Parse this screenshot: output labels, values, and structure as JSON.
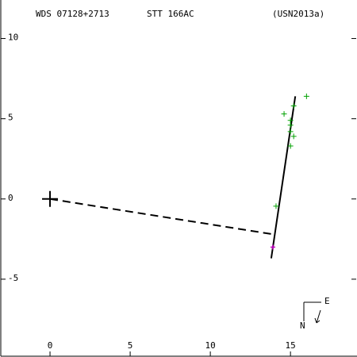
{
  "chart_data": {
    "type": "scatter",
    "title_left": "WDS 07128+2713",
    "title_center": "STT 166AC",
    "title_right": "(USN2013a)",
    "xlim": [
      -3.07,
      19.1
    ],
    "ylim": [
      -9.8,
      12.4
    ],
    "xticks": [
      0,
      5,
      10,
      15
    ],
    "yticks": [
      10,
      5,
      0,
      -5
    ],
    "series": [
      {
        "color": "#00a000",
        "x": [
          16.0,
          15.2,
          14.6,
          15.0,
          15.0,
          15.0,
          15.2,
          15.0,
          14.1
        ],
        "y": [
          6.4,
          5.8,
          5.3,
          4.9,
          4.6,
          4.2,
          3.9,
          3.3,
          -0.45
        ]
      }
    ],
    "primary": {
      "x": 0,
      "y": 0,
      "color": "#000000"
    },
    "predicted": {
      "x": 13.9,
      "y": -3.0,
      "color": "#c000c0"
    },
    "orbit_line": {
      "x": [
        13.8,
        15.3
      ],
      "y": [
        -3.7,
        6.4
      ],
      "color": "#000000"
    },
    "dashed_line": {
      "x": [
        0,
        13.9
      ],
      "y": [
        0,
        -2.2
      ],
      "color": "#000000"
    },
    "compass": {
      "east": "E",
      "north": "N"
    }
  }
}
